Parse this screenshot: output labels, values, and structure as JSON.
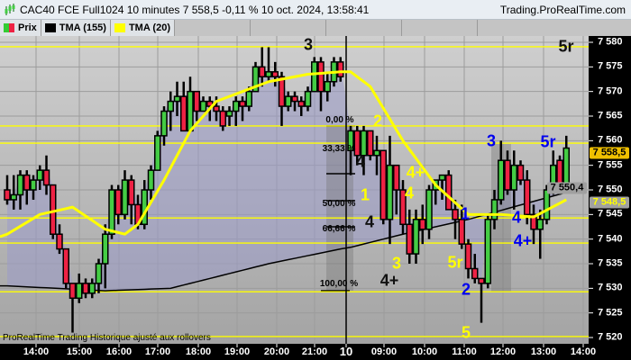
{
  "window": {
    "title": "CAC40 FCE Full1024 10 minutes 7 558,5 -0,11 % 10 oct. 2024, 13:58:41",
    "site": "Trading.ProRealTime.com"
  },
  "legend": [
    {
      "label": "Prix",
      "colors": [
        "#33cc33",
        "#ee2244"
      ]
    },
    {
      "label": "TMA (155)",
      "color": "#000000"
    },
    {
      "label": "TMA (20)",
      "color": "#ffff00"
    }
  ],
  "footer": "ProRealTime Trading  Historique ajusté aux rollovers",
  "colors": {
    "up": "#44cc44",
    "down": "#ee2244",
    "tma20": "#ffff00",
    "tma155": "#000000",
    "hline": "#ffff00",
    "shade": "#9a9ac8"
  },
  "price_axis": {
    "ticks": [
      "7 580",
      "7 575",
      "7 570",
      "7 565",
      "7 560",
      "7 555",
      "7 550",
      "7 545",
      "7 540",
      "7 535",
      "7 530",
      "7 525",
      "7 520"
    ],
    "tags": [
      {
        "label": "7 558,5",
        "price": 7558.5,
        "bg": "#f0c000",
        "fg": "#000000"
      },
      {
        "label": "7 550,4",
        "price": 7550.4,
        "bg": "#a0a0a0",
        "fg": "#000000"
      },
      {
        "label": "7 548,5",
        "price": 7548.5,
        "bg": "#a0a0a0",
        "fg": "#ffff00"
      }
    ]
  },
  "time_axis": [
    "14:00",
    "15:00",
    "16:00",
    "17:00",
    "18:00",
    "19:00",
    "20:00",
    "21:00",
    "10",
    "09:00",
    "10:00",
    "11:00",
    "12:00",
    "13:00",
    "14:00"
  ],
  "horizontal_levels": [
    7579.1,
    7563,
    7559.5,
    7544.3,
    7539.2,
    7529.3,
    7520.2
  ],
  "fibonacci": [
    "0,00 %",
    "33,33 %",
    "50,00 %",
    "66,66 %",
    "100,00 %"
  ],
  "annotations": [
    {
      "text": "3",
      "color": "#111111"
    },
    {
      "text": "5r",
      "color": "#111111"
    },
    {
      "text": "4",
      "color": "#111111"
    },
    {
      "text": "2",
      "color": "#ffff00"
    },
    {
      "text": "1",
      "color": "#ffff00"
    },
    {
      "text": "4+",
      "color": "#ffff00"
    },
    {
      "text": "4",
      "color": "#ffff00"
    },
    {
      "text": "4",
      "color": "#111111"
    },
    {
      "text": "3",
      "color": "#ffff00"
    },
    {
      "text": "4+",
      "color": "#111111"
    },
    {
      "text": "5r",
      "color": "#ffff00"
    },
    {
      "text": "1",
      "color": "#0000ee"
    },
    {
      "text": "2",
      "color": "#0000ee"
    },
    {
      "text": "3",
      "color": "#0000ee"
    },
    {
      "text": "5r",
      "color": "#0000ee"
    },
    {
      "text": "4",
      "color": "#0000ee"
    },
    {
      "text": "4+",
      "color": "#0000ee"
    },
    {
      "text": "5",
      "color": "#ffff00"
    }
  ],
  "chart_data": {
    "type": "candlestick",
    "ohlc": [
      [
        7550,
        7553,
        7547,
        7548
      ],
      [
        7548,
        7553,
        7546,
        7549
      ],
      [
        7549,
        7554,
        7546,
        7553
      ],
      [
        7553,
        7554,
        7547,
        7550
      ],
      [
        7550,
        7553,
        7548,
        7552
      ],
      [
        7552,
        7555,
        7550,
        7554
      ],
      [
        7554,
        7557,
        7549,
        7551
      ],
      [
        7551,
        7551,
        7540,
        7541
      ],
      [
        7541,
        7543,
        7537,
        7538
      ],
      [
        7538,
        7538,
        7530,
        7531
      ],
      [
        7531,
        7531,
        7521,
        7528
      ],
      [
        7528,
        7533,
        7527,
        7531
      ],
      [
        7531,
        7532,
        7528,
        7529
      ],
      [
        7529,
        7532,
        7528,
        7531
      ],
      [
        7531,
        7536,
        7529,
        7535
      ],
      [
        7535,
        7543,
        7530,
        7541
      ],
      [
        7541,
        7551,
        7540,
        7550
      ],
      [
        7550,
        7551,
        7543,
        7545
      ],
      [
        7545,
        7554,
        7544,
        7552
      ],
      [
        7552,
        7553,
        7543,
        7547
      ],
      [
        7547,
        7549,
        7542,
        7543
      ],
      [
        7543,
        7552,
        7542,
        7550
      ],
      [
        7550,
        7555,
        7548,
        7554
      ],
      [
        7554,
        7562,
        7554,
        7561
      ],
      [
        7561,
        7567,
        7559,
        7566
      ],
      [
        7566,
        7570,
        7562,
        7568
      ],
      [
        7568,
        7572,
        7565,
        7569
      ],
      [
        7569,
        7572,
        7562,
        7562
      ],
      [
        7562,
        7573,
        7562,
        7570
      ],
      [
        7570,
        7570,
        7564,
        7566
      ],
      [
        7566,
        7569,
        7566,
        7568
      ],
      [
        7568,
        7569,
        7564,
        7567
      ],
      [
        7567,
        7569,
        7564,
        7566
      ],
      [
        7566,
        7567,
        7562,
        7563
      ],
      [
        7565,
        7567,
        7563,
        7566
      ],
      [
        7566,
        7569,
        7563,
        7568
      ],
      [
        7568,
        7569,
        7564,
        7567
      ],
      [
        7567,
        7571,
        7566,
        7570
      ],
      [
        7570,
        7576,
        7570,
        7575
      ],
      [
        7575,
        7579,
        7571,
        7573
      ],
      [
        7573,
        7579,
        7572,
        7574
      ],
      [
        7574,
        7576,
        7571,
        7573
      ],
      [
        7573,
        7574,
        7563,
        7567
      ],
      [
        7567,
        7570,
        7566,
        7569
      ],
      [
        7569,
        7570,
        7566,
        7568
      ],
      [
        7568,
        7569,
        7565,
        7567
      ],
      [
        7567,
        7571,
        7566,
        7570
      ],
      [
        7570,
        7577,
        7570,
        7576
      ],
      [
        7576,
        7577,
        7566,
        7570
      ],
      [
        7570,
        7574,
        7568,
        7572
      ],
      [
        7572,
        7577,
        7571,
        7576
      ],
      [
        7576,
        7577,
        7572,
        7573
      ],
      [
        7558,
        7563,
        7553,
        7562
      ],
      [
        7562,
        7563,
        7555,
        7557
      ],
      [
        7557,
        7563,
        7553,
        7562
      ],
      [
        7562,
        7562,
        7556,
        7557
      ],
      [
        7557,
        7561,
        7553,
        7558
      ],
      [
        7558,
        7558,
        7543,
        7544
      ],
      [
        7544,
        7561,
        7539,
        7555
      ],
      [
        7555,
        7555,
        7545,
        7550
      ],
      [
        7550,
        7552,
        7541,
        7543
      ],
      [
        7543,
        7546,
        7535,
        7537
      ],
      [
        7537,
        7546,
        7535,
        7544
      ],
      [
        7544,
        7547,
        7539,
        7542
      ],
      [
        7542,
        7551,
        7540,
        7550
      ],
      [
        7550,
        7552,
        7547,
        7552
      ],
      [
        7552,
        7553,
        7548,
        7553
      ],
      [
        7553,
        7554,
        7546,
        7546
      ],
      [
        7546,
        7548,
        7540,
        7544
      ],
      [
        7544,
        7547,
        7538,
        7539
      ],
      [
        7539,
        7540,
        7532,
        7534
      ],
      [
        7534,
        7537,
        7531,
        7532
      ],
      [
        7532,
        7532,
        7523,
        7531
      ],
      [
        7531,
        7545,
        7530,
        7544
      ],
      [
        7544,
        7550,
        7542,
        7548
      ],
      [
        7548,
        7560,
        7547,
        7556
      ],
      [
        7556,
        7558,
        7549,
        7550
      ],
      [
        7550,
        7558,
        7546,
        7555
      ],
      [
        7555,
        7556,
        7551,
        7552
      ],
      [
        7552,
        7554,
        7543,
        7545
      ],
      [
        7545,
        7547,
        7539,
        7542
      ],
      [
        7542,
        7546,
        7536,
        7544
      ],
      [
        7544,
        7551,
        7543,
        7550
      ],
      [
        7550,
        7558,
        7549,
        7555
      ],
      [
        7556,
        7557,
        7549,
        7551
      ],
      [
        7551,
        7561,
        7551,
        7558.5
      ]
    ],
    "session_break_index": 52,
    "tma20": [
      [
        0,
        7541
      ],
      [
        5,
        7545
      ],
      [
        10,
        7546.5
      ],
      [
        15,
        7542
      ],
      [
        18,
        7541
      ],
      [
        20,
        7543
      ],
      [
        24,
        7552
      ],
      [
        28,
        7562
      ],
      [
        32,
        7568
      ],
      [
        40,
        7572
      ],
      [
        46,
        7573.5
      ],
      [
        51,
        7574
      ],
      [
        52,
        7574
      ],
      [
        55,
        7571
      ],
      [
        60,
        7560
      ],
      [
        65,
        7551
      ],
      [
        70,
        7545
      ],
      [
        75,
        7545
      ],
      [
        80,
        7544.5
      ],
      [
        85,
        7548
      ]
    ],
    "tma155": [
      [
        0,
        7530.5
      ],
      [
        15,
        7529.5
      ],
      [
        25,
        7530
      ],
      [
        40,
        7535
      ],
      [
        51,
        7538
      ],
      [
        60,
        7541
      ],
      [
        70,
        7544
      ],
      [
        85,
        7549.5
      ]
    ],
    "ylim": [
      7518,
      7581
    ]
  }
}
